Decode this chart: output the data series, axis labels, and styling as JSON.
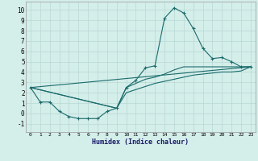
{
  "xlabel": "Humidex (Indice chaleur)",
  "bg_color": "#d4eeea",
  "grid_color": "#b8d8d4",
  "line_color": "#1a6b6b",
  "xlim": [
    -0.5,
    23.5
  ],
  "ylim": [
    -1.8,
    10.8
  ],
  "xticks": [
    0,
    1,
    2,
    3,
    4,
    5,
    6,
    7,
    8,
    9,
    10,
    11,
    12,
    13,
    14,
    15,
    16,
    17,
    18,
    19,
    20,
    21,
    22,
    23
  ],
  "yticks": [
    -1,
    0,
    1,
    2,
    3,
    4,
    5,
    6,
    7,
    8,
    9,
    10
  ],
  "series": [
    {
      "x": [
        0,
        1,
        2,
        3,
        4,
        5,
        6,
        7,
        8,
        9,
        10,
        11,
        12,
        13,
        14,
        15,
        16,
        17,
        18,
        19,
        20,
        21,
        22,
        23
      ],
      "y": [
        2.5,
        1.1,
        1.1,
        0.2,
        -0.3,
        -0.5,
        -0.5,
        -0.5,
        0.2,
        0.5,
        2.5,
        3.2,
        4.4,
        4.6,
        9.2,
        10.2,
        9.7,
        8.2,
        6.3,
        5.3,
        5.4,
        5.0,
        4.5,
        4.5
      ],
      "marker": true
    },
    {
      "x": [
        0,
        9,
        10,
        11,
        12,
        13,
        14,
        15,
        16,
        17,
        18,
        19,
        20,
        21,
        22,
        23
      ],
      "y": [
        2.5,
        0.5,
        2.5,
        2.9,
        3.3,
        3.5,
        3.8,
        4.2,
        4.5,
        4.5,
        4.5,
        4.5,
        4.5,
        4.5,
        4.5,
        4.5
      ],
      "marker": false
    },
    {
      "x": [
        0,
        9,
        10,
        11,
        12,
        13,
        14,
        15,
        16,
        17,
        18,
        19,
        20,
        21,
        22,
        23
      ],
      "y": [
        2.5,
        0.5,
        2.0,
        2.3,
        2.6,
        2.9,
        3.1,
        3.3,
        3.5,
        3.7,
        3.8,
        3.9,
        4.0,
        4.0,
        4.1,
        4.5
      ],
      "marker": false
    },
    {
      "x": [
        0,
        23
      ],
      "y": [
        2.5,
        4.5
      ],
      "marker": false
    }
  ]
}
